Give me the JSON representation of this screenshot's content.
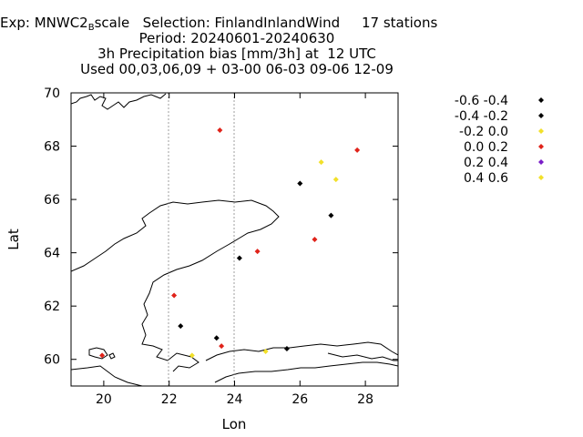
{
  "header": {
    "exp_prefix": "Exp: MNWC2",
    "exp_sub": "B",
    "exp_suffix": "scale",
    "selection": "Selection: FinlandInlandWind",
    "stations": "17 stations",
    "period": "Period: 20240601-20240630",
    "bias": "3h Precipitation bias [mm/3h] at  12 UTC",
    "used": "Used 00,03,06,09 + 03-00 06-03 09-06 12-09"
  },
  "chart_data": {
    "type": "scatter",
    "xlabel": "Lon",
    "ylabel": "Lat",
    "xlim": [
      19,
      29
    ],
    "ylim": [
      59,
      70
    ],
    "xticks": [
      20,
      22,
      24,
      26,
      28
    ],
    "yticks": [
      60,
      62,
      64,
      66,
      68,
      70
    ],
    "legend": [
      {
        "label": "-0.6 -0.4",
        "color": "#000000"
      },
      {
        "label": "-0.4 -0.2",
        "color": "#000000"
      },
      {
        "label": "-0.2 0.0",
        "color": "#f2e02a"
      },
      {
        "label": "0.0 0.2",
        "color": "#e0231a"
      },
      {
        "label": "0.2 0.4",
        "color": "#7a1ec8"
      },
      {
        "label": "0.4 0.6",
        "color": "#f2e02a"
      }
    ],
    "points": [
      {
        "lon": 23.55,
        "lat": 68.6,
        "bin": 3
      },
      {
        "lon": 27.75,
        "lat": 67.85,
        "bin": 3
      },
      {
        "lon": 26.65,
        "lat": 67.4,
        "bin": 2
      },
      {
        "lon": 27.1,
        "lat": 66.75,
        "bin": 2
      },
      {
        "lon": 26.0,
        "lat": 66.6,
        "bin": 1
      },
      {
        "lon": 26.95,
        "lat": 65.4,
        "bin": 1
      },
      {
        "lon": 26.45,
        "lat": 64.5,
        "bin": 3
      },
      {
        "lon": 24.7,
        "lat": 64.05,
        "bin": 3
      },
      {
        "lon": 24.15,
        "lat": 63.8,
        "bin": 1
      },
      {
        "lon": 22.15,
        "lat": 62.4,
        "bin": 3
      },
      {
        "lon": 22.35,
        "lat": 61.25,
        "bin": 1
      },
      {
        "lon": 23.45,
        "lat": 60.8,
        "bin": 1
      },
      {
        "lon": 23.6,
        "lat": 60.5,
        "bin": 3
      },
      {
        "lon": 25.6,
        "lat": 60.4,
        "bin": 0
      },
      {
        "lon": 24.95,
        "lat": 60.3,
        "bin": 2
      },
      {
        "lon": 22.7,
        "lat": 60.15,
        "bin": 2
      },
      {
        "lon": 19.95,
        "lat": 60.15,
        "bin": 3
      }
    ]
  }
}
